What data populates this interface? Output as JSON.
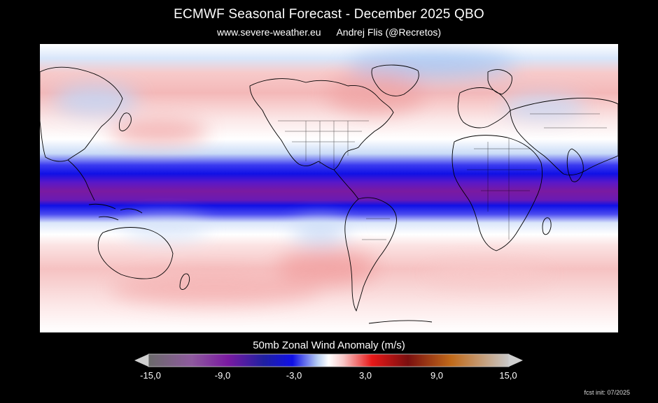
{
  "header": {
    "title": "ECMWF Seasonal Forecast - December 2025 QBO",
    "website": "www.severe-weather.eu",
    "author": "Andrej Flis (@Recretos)"
  },
  "legend": {
    "title": "50mb Zonal Wind Anomaly (m/s)",
    "ticks": [
      "-15,0",
      "-9,0",
      "-3,0",
      "3,0",
      "9,0",
      "15,0"
    ],
    "colors": [
      "#6a6a6a",
      "#8e5a9e",
      "#7a1aa0",
      "#1010e6",
      "#b8cff3",
      "#ffffff",
      "#f8c8c8",
      "#e81818",
      "#7a0f0f",
      "#c06a1a",
      "#c8c8c8"
    ]
  },
  "footer": {
    "fcst_init": "fcst init: 07/2025"
  },
  "map_colors": {
    "equatorial_core": "#7a1aa0",
    "easterly_band": "#1010e6",
    "weak_negative": "#b8cff3",
    "weak_positive": "#f8c8c8",
    "positive": "#ee9a9a",
    "coastline": "#000000"
  }
}
